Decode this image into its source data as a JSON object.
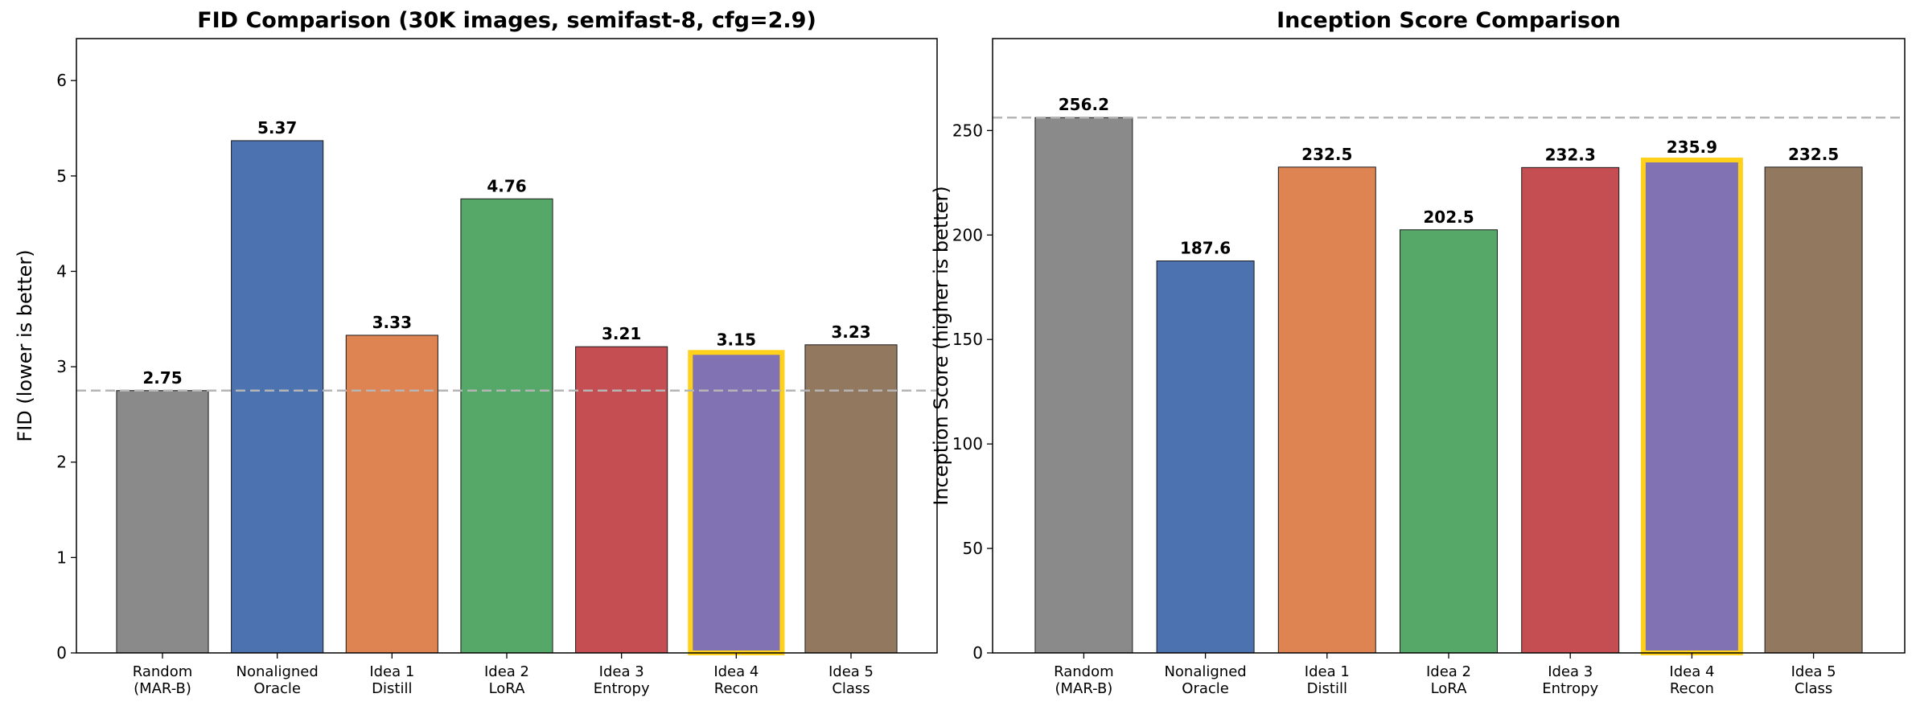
{
  "chart_data": [
    {
      "type": "bar",
      "title": "FID Comparison (30K images, semifast-8, cfg=2.9)",
      "xlabel": "",
      "ylabel": "FID (lower is better)",
      "ylim": [
        0,
        6.44
      ],
      "yticks": [
        0,
        1,
        2,
        3,
        4,
        5,
        6
      ],
      "categories": [
        [
          "Random",
          "(MAR-B)"
        ],
        [
          "Nonaligned",
          "Oracle"
        ],
        [
          "Idea 1",
          "Distill"
        ],
        [
          "Idea 2",
          "LoRA"
        ],
        [
          "Idea 3",
          "Entropy"
        ],
        [
          "Idea 4",
          "Recon"
        ],
        [
          "Idea 5",
          "Class"
        ]
      ],
      "values": [
        2.75,
        5.37,
        3.33,
        4.76,
        3.21,
        3.15,
        3.23
      ],
      "value_labels": [
        "2.75",
        "5.37",
        "3.33",
        "4.76",
        "3.21",
        "3.15",
        "3.23"
      ],
      "colors": [
        "#8a8a8a",
        "#4c72b0",
        "#dd8452",
        "#55a868",
        "#c44e52",
        "#8172b3",
        "#937860"
      ],
      "highlight_index": 5,
      "highlight_color": "#ffd11a",
      "reference_line": 2.75,
      "grid": false
    },
    {
      "type": "bar",
      "title": "Inception Score Comparison",
      "xlabel": "",
      "ylabel": "Inception Score (higher is better)",
      "ylim": [
        0,
        294
      ],
      "yticks": [
        0,
        50,
        100,
        150,
        200,
        250
      ],
      "categories": [
        [
          "Random",
          "(MAR-B)"
        ],
        [
          "Nonaligned",
          "Oracle"
        ],
        [
          "Idea 1",
          "Distill"
        ],
        [
          "Idea 2",
          "LoRA"
        ],
        [
          "Idea 3",
          "Entropy"
        ],
        [
          "Idea 4",
          "Recon"
        ],
        [
          "Idea 5",
          "Class"
        ]
      ],
      "values": [
        256.2,
        187.6,
        232.5,
        202.5,
        232.3,
        235.9,
        232.5
      ],
      "value_labels": [
        "256.2",
        "187.6",
        "232.5",
        "202.5",
        "232.3",
        "235.9",
        "232.5"
      ],
      "colors": [
        "#8a8a8a",
        "#4c72b0",
        "#dd8452",
        "#55a868",
        "#c44e52",
        "#8172b3",
        "#937860"
      ],
      "highlight_index": 5,
      "highlight_color": "#ffd11a",
      "reference_line": 256.2,
      "grid": false
    }
  ]
}
